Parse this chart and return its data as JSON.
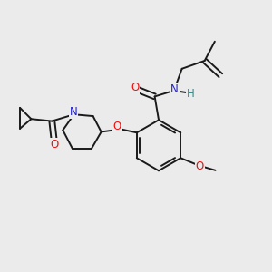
{
  "background_color": "#ebebeb",
  "bond_color": "#1a1a1a",
  "bond_width": 1.4,
  "atom_colors": {
    "O": "#ee1111",
    "N": "#2222cc",
    "H": "#3a8888",
    "C": "#1a1a1a"
  },
  "font_size": 8.5
}
